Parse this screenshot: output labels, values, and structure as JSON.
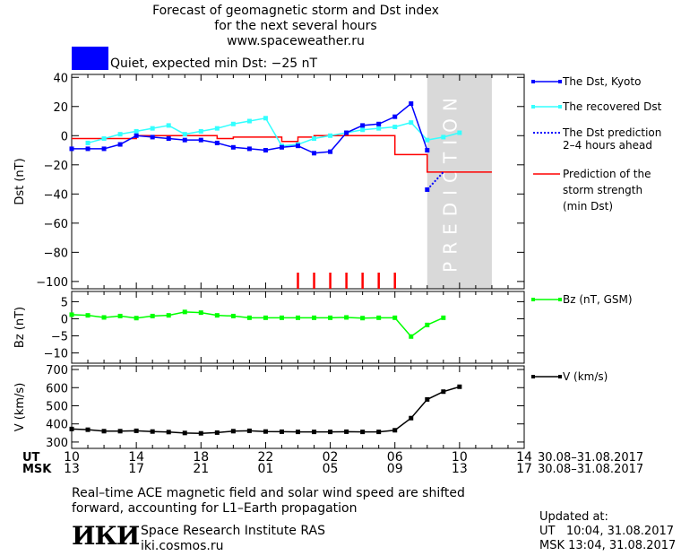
{
  "header": {
    "title_line1": "Forecast of geomagnetic storm and Dst index",
    "title_line2": "for the next several hours",
    "url": "www.spaceweather.ru",
    "status_text": "Quiet, expected min Dst: −25 nT",
    "status_color": "#0000ff"
  },
  "colors": {
    "dst_kyoto": "#0000ff",
    "dst_recovered": "#33ffff",
    "prediction": "#ff0000",
    "bz": "#00ff00",
    "v": "#000000",
    "prediction_band": "#d9d9d9"
  },
  "chart_data": [
    {
      "type": "line",
      "panel": "dst",
      "ylabel": "Dst (nT)",
      "ylim": [
        -105,
        42
      ],
      "yticks": [
        40,
        20,
        0,
        -20,
        -40,
        -60,
        -80,
        -100
      ],
      "ytick_labels": [
        "40",
        "20",
        "0",
        "−20",
        "−40",
        "−60",
        "−80",
        "−100"
      ],
      "prediction_band": {
        "x_start": 32,
        "x_end": 36,
        "label": "PREDICTION"
      },
      "storm_markers_x": [
        24,
        25,
        26,
        27,
        28,
        29,
        30
      ],
      "legend": [
        {
          "key": "dst_kyoto",
          "label": "The Dst, Kyoto"
        },
        {
          "key": "dst_recovered",
          "label": "The recovered Dst"
        },
        {
          "key": "dst_prediction",
          "label_line1": "The Dst prediction",
          "label_line2": "2–4 hours ahead"
        },
        {
          "key": "min_dst",
          "label_line1": "Prediction of the",
          "label_line2": "storm strength",
          "label_line3": "(min Dst)"
        }
      ],
      "series": [
        {
          "name": "The Dst, Kyoto",
          "x": [
            10,
            11,
            12,
            13,
            14,
            15,
            16,
            17,
            18,
            19,
            20,
            21,
            22,
            23,
            24,
            25,
            26,
            27,
            28,
            29,
            30,
            31,
            32
          ],
          "y": [
            -9,
            -9,
            -9,
            -6,
            0,
            -1,
            -2,
            -3,
            -3,
            -5,
            -8,
            -9,
            -10,
            -8,
            -7,
            -12,
            -11,
            2,
            7,
            8,
            13,
            22,
            -10
          ]
        },
        {
          "name": "The Dst prediction",
          "x": [
            32,
            33
          ],
          "y": [
            -37,
            -25
          ]
        },
        {
          "name": "The recovered Dst",
          "x": [
            11,
            12,
            13,
            14,
            15,
            16,
            17,
            18,
            19,
            20,
            21,
            22,
            23,
            24,
            25,
            26,
            27,
            28,
            29,
            30,
            31,
            32,
            33,
            34
          ],
          "y": [
            -5,
            -2,
            1,
            3,
            5,
            7,
            1,
            3,
            5,
            8,
            10,
            12,
            -7,
            -6,
            -2,
            0,
            2,
            4,
            5,
            6,
            9,
            -3,
            -1,
            2
          ]
        },
        {
          "name": "Prediction of the storm strength",
          "x": [
            10,
            14,
            14,
            19,
            19,
            20,
            20,
            23,
            23,
            24,
            24,
            25,
            25,
            26,
            26,
            30,
            30,
            32,
            32,
            36
          ],
          "y": [
            -2,
            -2,
            0,
            0,
            -2,
            -2,
            -1,
            -1,
            -4,
            -4,
            -1,
            -1,
            0,
            0,
            0,
            0,
            -13,
            -13,
            -25,
            -25
          ]
        }
      ]
    },
    {
      "type": "line",
      "panel": "bz",
      "ylabel": "Bz (nT)",
      "ylim": [
        -13,
        8
      ],
      "yticks": [
        5,
        0,
        -5,
        -10
      ],
      "ytick_labels": [
        "5",
        "0",
        "−5",
        "−10"
      ],
      "legend": [
        {
          "key": "bz",
          "label": "Bz (nT, GSM)"
        }
      ],
      "series": [
        {
          "name": "Bz (nT, GSM)",
          "x": [
            10,
            11,
            12,
            13,
            14,
            15,
            16,
            17,
            18,
            19,
            20,
            21,
            22,
            23,
            24,
            25,
            26,
            27,
            28,
            29,
            30,
            31,
            32,
            33
          ],
          "y": [
            1.2,
            1.0,
            0.4,
            0.8,
            0.2,
            0.8,
            1.0,
            2.0,
            1.8,
            1.0,
            0.8,
            0.3,
            0.3,
            0.3,
            0.3,
            0.3,
            0.3,
            0.4,
            0.2,
            0.3,
            0.3,
            -5.2,
            -1.8,
            0.3
          ]
        }
      ]
    },
    {
      "type": "line",
      "panel": "v",
      "ylabel": "V (km/s)",
      "ylim": [
        265,
        720
      ],
      "yticks": [
        700,
        600,
        500,
        400,
        300
      ],
      "ytick_labels": [
        "700",
        "600",
        "500",
        "400",
        "300"
      ],
      "legend": [
        {
          "key": "v",
          "label": "V (km/s)"
        }
      ],
      "series": [
        {
          "name": "V (km/s)",
          "x": [
            10,
            11,
            12,
            13,
            14,
            15,
            16,
            17,
            18,
            19,
            20,
            21,
            22,
            23,
            24,
            25,
            26,
            27,
            28,
            29,
            30,
            31,
            32,
            33,
            34
          ],
          "y": [
            372,
            368,
            360,
            360,
            362,
            358,
            355,
            350,
            348,
            352,
            360,
            362,
            358,
            357,
            356,
            356,
            356,
            357,
            356,
            356,
            365,
            432,
            535,
            578,
            605
          ]
        }
      ]
    }
  ],
  "time_axis": {
    "ut_label": "UT",
    "msk_label": "MSK",
    "ticks_x": [
      10,
      14,
      18,
      22,
      26,
      30,
      34,
      38
    ],
    "ut_ticks": [
      "10",
      "14",
      "18",
      "22",
      "02",
      "06",
      "10",
      "14"
    ],
    "msk_ticks": [
      "13",
      "17",
      "21",
      "01",
      "05",
      "09",
      "13",
      "17"
    ],
    "date_range_ut": "30.08–31.08.2017",
    "date_range_msk": "30.08–31.08.2017"
  },
  "footer": {
    "note_line1": "Real–time ACE magnetic field and solar wind speed are shifted",
    "note_line2": "forward, accounting for L1–Earth propagation",
    "logo_text": "ИКИ",
    "institute": "Space Research Institute RAS",
    "site": "iki.cosmos.ru",
    "updated_label": "Updated at:",
    "updated_ut": "UT   10:04, 31.08.2017",
    "updated_msk": "MSK 13:04, 31.08.2017"
  }
}
